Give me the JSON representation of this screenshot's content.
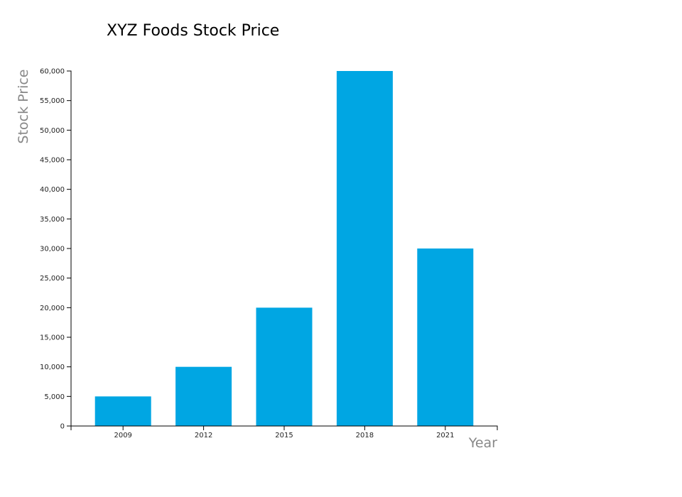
{
  "chart_data": {
    "type": "bar",
    "title": "XYZ Foods Stock Price",
    "xlabel": "Year",
    "ylabel": "Stock Price",
    "categories": [
      "2009",
      "2012",
      "2015",
      "2018",
      "2021"
    ],
    "values": [
      5000,
      10000,
      20000,
      60000,
      30000
    ],
    "ylim": [
      0,
      60000
    ],
    "yticks": [
      "0",
      "5,000",
      "10,000",
      "15,000",
      "20,000",
      "25,000",
      "30,000",
      "35,000",
      "40,000",
      "45,000",
      "50,000",
      "55,000",
      "60,000"
    ],
    "ytick_values": [
      0,
      5000,
      10000,
      15000,
      20000,
      25000,
      30000,
      35000,
      40000,
      45000,
      50000,
      55000,
      60000
    ],
    "grid": false,
    "bar_color": "#00a6e3"
  }
}
